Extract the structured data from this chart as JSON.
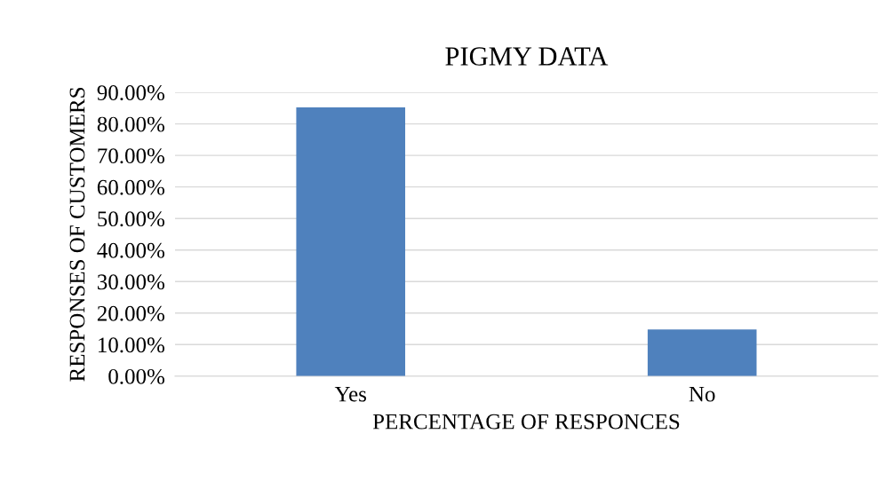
{
  "chart_data": {
    "type": "bar",
    "title": "PIGMY DATA",
    "xlabel": "PERCENTAGE OF RESPONCES",
    "ylabel": "RESPONSES OF CUSTOMERS",
    "categories": [
      "Yes",
      "No"
    ],
    "values": [
      85.2,
      14.8
    ],
    "color": "#4f81bd",
    "ylim": [
      0,
      90
    ],
    "yticks": [
      {
        "value": 0,
        "label": "0.00%"
      },
      {
        "value": 10,
        "label": "10.00%"
      },
      {
        "value": 20,
        "label": "20.00%"
      },
      {
        "value": 30,
        "label": "30.00%"
      },
      {
        "value": 40,
        "label": "40.00%"
      },
      {
        "value": 50,
        "label": "50.00%"
      },
      {
        "value": 60,
        "label": "60.00%"
      },
      {
        "value": 70,
        "label": "70.00%"
      },
      {
        "value": 80,
        "label": "80.00%"
      },
      {
        "value": 90,
        "label": "90.00%"
      }
    ],
    "grid": "y",
    "legend": false
  }
}
